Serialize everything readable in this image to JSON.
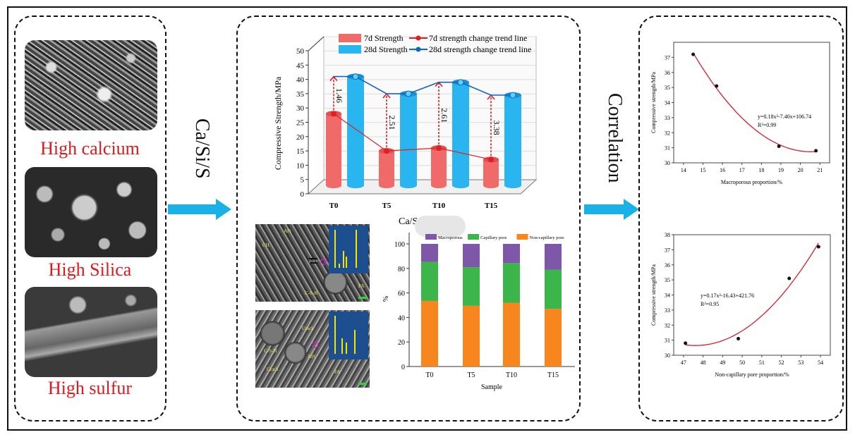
{
  "left_panel": {
    "items": [
      {
        "label": "High calcium",
        "image": "sem-high-calcium"
      },
      {
        "label": "High Silica",
        "image": "sem-high-silica"
      },
      {
        "label": "High sulfur",
        "image": "sem-high-sulfur"
      }
    ]
  },
  "arrow1_label": "Ca/Si/S",
  "arrow2_label": "Correlation",
  "sem_panel": {
    "top_labels": [
      "AFt",
      "CH",
      "pore",
      "C-S-H",
      "FA"
    ],
    "bottom_labels": [
      "Crack",
      "C-S-H",
      "AFt",
      "Crack",
      "FA"
    ]
  },
  "colors": {
    "arrow": "#1ab0e8",
    "red": "#f06a6a",
    "blue": "#29b6f0",
    "purple": "#7e57a8",
    "green": "#3cb54a",
    "orange": "#f7861e",
    "title_red": "#e0181b"
  },
  "chart_data": [
    {
      "type": "bar",
      "style": "3d-cylinder",
      "categories": [
        "T0",
        "T5",
        "T10",
        "T15"
      ],
      "ylabel": "Compressive Strength/MPa",
      "ylim": [
        0,
        50
      ],
      "yticks": [
        0,
        5,
        10,
        15,
        20,
        25,
        30,
        35,
        40,
        45,
        50
      ],
      "series": [
        {
          "name": "7d Strength",
          "values": [
            28,
            15,
            16,
            12
          ],
          "color": "#f06a6a"
        },
        {
          "name": "28d Strength",
          "values": [
            40,
            34,
            38,
            33.5
          ],
          "color": "#29b6f0"
        }
      ],
      "trend_lines": [
        "7d strength change trend line",
        "28d strength change trend line"
      ],
      "annotations": [
        "1.46",
        "2.51",
        "2.61",
        "3.38"
      ],
      "legend": "top"
    },
    {
      "type": "bar",
      "stacked": true,
      "title": "Ca/Si/S",
      "categories": [
        "T0",
        "T5",
        "T10",
        "T15"
      ],
      "xlabel": "Sample",
      "ylabel": "%",
      "ylim": [
        0,
        100
      ],
      "yticks": [
        0,
        20,
        40,
        60,
        80,
        100
      ],
      "series": [
        {
          "name": "Non-capillary pore",
          "values": [
            53.5,
            49.5,
            52,
            47
          ],
          "color": "#f7861e"
        },
        {
          "name": "Capillary pore",
          "values": [
            31.8,
            31.5,
            32.3,
            32
          ],
          "color": "#3cb54a"
        },
        {
          "name": "Macroporous",
          "values": [
            14.7,
            19,
            15.7,
            21
          ],
          "color": "#7e57a8"
        }
      ],
      "legend_order": [
        "Macroporous",
        "Capillary pore",
        "Non-capillary pore"
      ],
      "legend": "top"
    },
    {
      "type": "scatter",
      "xlabel": "Macroporous proportion/%",
      "ylabel": "Compressive strength/MPa",
      "xlim": [
        13.5,
        21.5
      ],
      "ylim": [
        30,
        38
      ],
      "xticks": [
        14,
        15,
        16,
        17,
        18,
        19,
        20,
        21
      ],
      "yticks": [
        30,
        31,
        32,
        33,
        34,
        35,
        36,
        37
      ],
      "x": [
        14.5,
        15.7,
        18.9,
        20.8
      ],
      "y": [
        37.2,
        35.1,
        31.1,
        30.8
      ],
      "fit": "quadratic",
      "equation": "y=0.18x²-7.40x+106.74",
      "r2": "R²=0.99"
    },
    {
      "type": "scatter",
      "xlabel": "Non-capillary pore proportion/%",
      "ylabel": "Compressive strength/MPa",
      "xlim": [
        46.5,
        54.5
      ],
      "ylim": [
        30,
        38
      ],
      "xticks": [
        47,
        48,
        49,
        50,
        51,
        52,
        53,
        54
      ],
      "yticks": [
        30,
        31,
        32,
        33,
        34,
        35,
        36,
        37,
        38
      ],
      "x": [
        47.1,
        49.8,
        52.4,
        53.9
      ],
      "y": [
        30.8,
        31.1,
        35.1,
        37.2
      ],
      "fit": "quadratic",
      "equation": "y=0.17x²-16.43+421.76",
      "r2": "R²=0.95"
    }
  ]
}
